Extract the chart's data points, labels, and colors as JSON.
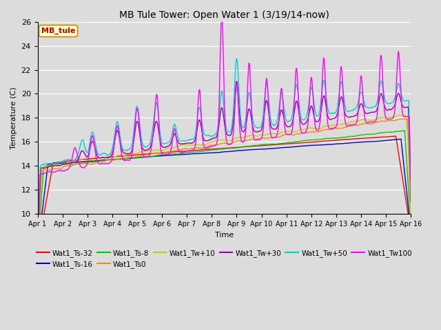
{
  "title": "MB Tule Tower: Open Water 1 (3/19/14-now)",
  "xlabel": "Time",
  "ylabel": "Temperature (C)",
  "ylim": [
    10,
    26
  ],
  "xlim": [
    0,
    15
  ],
  "yticks": [
    10,
    12,
    14,
    16,
    18,
    20,
    22,
    24,
    26
  ],
  "xtick_labels": [
    "Apr 1",
    "Apr 2",
    "Apr 3",
    "Apr 4",
    "Apr 5",
    "Apr 6",
    "Apr 7",
    "Apr 8",
    "Apr 9",
    "Apr 10",
    "Apr 11",
    "Apr 12",
    "Apr 13",
    "Apr 14",
    "Apr 15",
    "Apr 16"
  ],
  "fig_width": 6.4,
  "fig_height": 4.8,
  "dpi": 100,
  "background_color": "#dcdcdc",
  "plot_bg_color": "#dcdcdc",
  "series_colors": {
    "Wat1_Ts-32": "#ff0000",
    "Wat1_Ts-16": "#0000cc",
    "Wat1_Ts-8": "#00cc00",
    "Wat1_Ts0": "#ff8800",
    "Wat1_Tw+10": "#cccc00",
    "Wat1_Tw+30": "#9900aa",
    "Wat1_Tw+50": "#00cccc",
    "Wat1_Tw100": "#ff00ff"
  },
  "watermark": "MB_tule",
  "watermark_color": "#cc0000",
  "watermark_bg": "#ffffcc",
  "watermark_border": "#cc8800",
  "legend_row1": [
    "Wat1_Ts-32",
    "Wat1_Ts-16",
    "Wat1_Ts-8",
    "Wat1_Ts0",
    "Wat1_Tw+10",
    "Wat1_Tw+30"
  ],
  "legend_row2": [
    "Wat1_Tw+50",
    "Wat1_Tw100"
  ]
}
